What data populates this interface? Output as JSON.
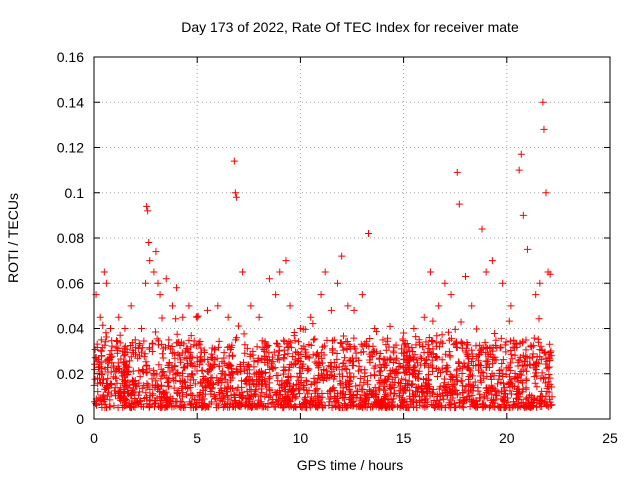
{
  "chart_data": {
    "type": "scatter",
    "title": "Day 173 of 2022, Rate Of TEC Index for receiver mate",
    "xlabel": "GPS time / hours",
    "ylabel": "ROTI / TECUs",
    "xlim": [
      0,
      25
    ],
    "ylim": [
      0,
      0.16
    ],
    "x_ticks": [
      0,
      5,
      10,
      15,
      20,
      25
    ],
    "x_tick_labels": [
      "0",
      "5",
      "10",
      "15",
      "20",
      "25"
    ],
    "y_ticks": [
      0,
      0.02,
      0.04,
      0.06,
      0.08,
      0.1,
      0.12,
      0.14,
      0.16
    ],
    "y_tick_labels": [
      "0",
      "0.02",
      "0.04",
      "0.06",
      "0.08",
      "0.1",
      "0.12",
      "0.14",
      "0.16"
    ],
    "grid": true,
    "marker": "+",
    "color": "#ff0000",
    "data_range_x": [
      0,
      22.2
    ],
    "baseline_band": [
      0.005,
      0.035
    ],
    "series": [
      {
        "x": [
          0.1,
          0.3,
          0.5,
          0.6,
          0.8,
          1.2,
          1.5,
          1.8,
          2.0,
          2.3,
          2.5,
          2.55,
          2.6,
          2.65,
          2.7,
          2.9,
          3.0,
          3.1,
          3.2,
          3.5,
          3.8,
          4.0,
          4.3,
          4.6,
          5.0,
          5.5,
          6.0,
          6.5,
          6.8,
          6.85,
          6.9,
          7.2,
          7.6,
          8.0,
          8.5,
          8.8,
          9.0,
          9.3,
          9.5,
          10.0,
          10.5,
          11.0,
          11.2,
          11.5,
          11.8,
          12.0,
          12.3,
          12.6,
          13.0,
          13.3,
          13.6,
          14.0,
          14.5,
          15.0,
          15.5,
          16.0,
          16.3,
          16.7,
          17.0,
          17.3,
          17.6,
          17.7,
          18.0,
          18.3,
          18.8,
          19.0,
          19.3,
          19.8,
          20.2,
          20.6,
          20.7,
          20.8,
          21.0,
          21.4,
          21.6,
          21.75,
          21.8,
          21.9,
          22.0,
          22.1
        ],
        "y": [
          0.055,
          0.045,
          0.065,
          0.06,
          0.04,
          0.045,
          0.04,
          0.05,
          0.035,
          0.04,
          0.06,
          0.094,
          0.092,
          0.078,
          0.07,
          0.065,
          0.074,
          0.06,
          0.055,
          0.062,
          0.05,
          0.058,
          0.045,
          0.05,
          0.045,
          0.048,
          0.05,
          0.045,
          0.114,
          0.1,
          0.098,
          0.065,
          0.05,
          0.045,
          0.062,
          0.055,
          0.065,
          0.07,
          0.05,
          0.04,
          0.045,
          0.055,
          0.065,
          0.048,
          0.06,
          0.072,
          0.05,
          0.048,
          0.055,
          0.082,
          0.04,
          0.035,
          0.03,
          0.038,
          0.04,
          0.045,
          0.065,
          0.05,
          0.06,
          0.055,
          0.109,
          0.095,
          0.063,
          0.05,
          0.084,
          0.065,
          0.07,
          0.06,
          0.05,
          0.11,
          0.117,
          0.09,
          0.075,
          0.055,
          0.06,
          0.14,
          0.128,
          0.1,
          0.065,
          0.064
        ]
      }
    ]
  }
}
